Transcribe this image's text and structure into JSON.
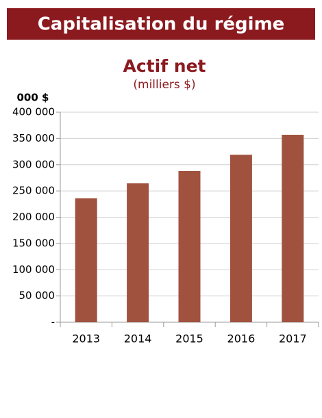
{
  "header": {
    "title": "Capitalisation du régime"
  },
  "chart_data": {
    "type": "bar",
    "title": "Actif net",
    "subtitle": "(milliers $)",
    "y_label": "000 $",
    "categories": [
      "2013",
      "2014",
      "2015",
      "2016",
      "2017"
    ],
    "values": [
      236000,
      264500,
      288000,
      319000,
      357000
    ],
    "color": "#a0523f",
    "ylim": [
      0,
      400000
    ],
    "yticks": [
      {
        "value": 0,
        "label": "-"
      },
      {
        "value": 50000,
        "label": "50 000"
      },
      {
        "value": 100000,
        "label": "100 000"
      },
      {
        "value": 150000,
        "label": "150 000"
      },
      {
        "value": 200000,
        "label": "200 000"
      },
      {
        "value": 250000,
        "label": "250 000"
      },
      {
        "value": 300000,
        "label": "300 000"
      },
      {
        "value": 350000,
        "label": "350 000"
      },
      {
        "value": 400000,
        "label": "400 000"
      }
    ],
    "grid": true
  }
}
